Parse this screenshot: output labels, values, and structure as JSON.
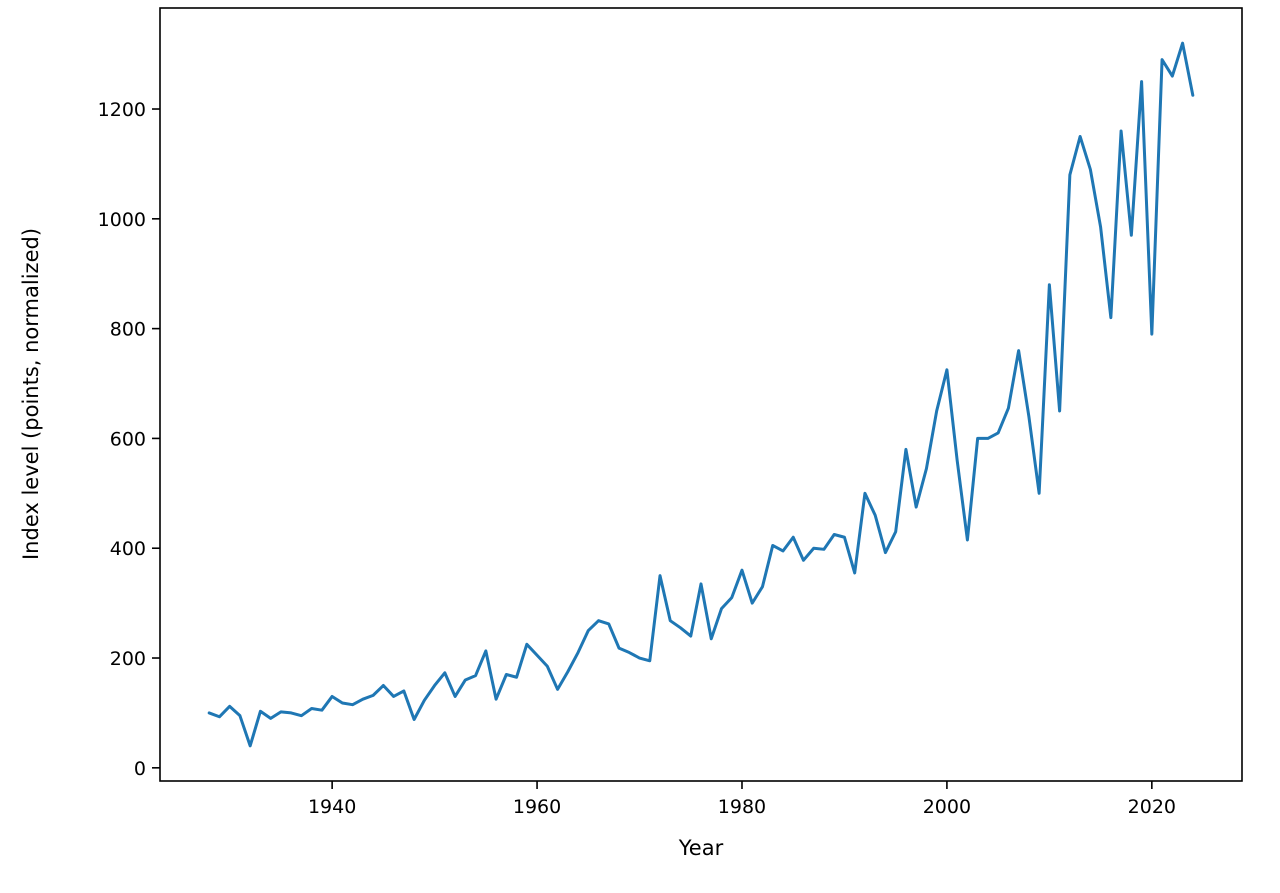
{
  "figure": {
    "background_color": "#ffffff",
    "spine_color": "#000000"
  },
  "chart_data": {
    "type": "line",
    "title": "",
    "xlabel": "Year",
    "ylabel": "Index level (points, normalized)",
    "line_color": "#1f77b4",
    "line_width": 3,
    "grid": false,
    "legend": "none",
    "xlim": [
      1923.2,
      2028.8
    ],
    "ylim": [
      -24,
      1384
    ],
    "xticks": [
      1940,
      1960,
      1980,
      2000,
      2020
    ],
    "yticks": [
      0,
      200,
      400,
      600,
      800,
      1000,
      1200
    ],
    "x": [
      1928,
      1929,
      1930,
      1931,
      1932,
      1933,
      1934,
      1935,
      1936,
      1937,
      1938,
      1939,
      1940,
      1941,
      1942,
      1943,
      1944,
      1945,
      1946,
      1947,
      1948,
      1949,
      1950,
      1951,
      1952,
      1953,
      1954,
      1955,
      1956,
      1957,
      1958,
      1959,
      1960,
      1961,
      1962,
      1963,
      1964,
      1965,
      1966,
      1967,
      1968,
      1969,
      1970,
      1971,
      1972,
      1973,
      1974,
      1975,
      1976,
      1977,
      1978,
      1979,
      1980,
      1981,
      1982,
      1983,
      1984,
      1985,
      1986,
      1987,
      1988,
      1989,
      1990,
      1991,
      1992,
      1993,
      1994,
      1995,
      1996,
      1997,
      1998,
      1999,
      2000,
      2001,
      2002,
      2003,
      2004,
      2005,
      2006,
      2007,
      2008,
      2009,
      2010,
      2011,
      2012,
      2013,
      2014,
      2015,
      2016,
      2017,
      2018,
      2019,
      2020,
      2021,
      2022,
      2023,
      2024
    ],
    "values": [
      100,
      93,
      112,
      95,
      40,
      103,
      90,
      102,
      100,
      95,
      108,
      105,
      130,
      118,
      115,
      125,
      132,
      150,
      130,
      140,
      88,
      123,
      150,
      173,
      130,
      160,
      168,
      213,
      125,
      170,
      165,
      225,
      205,
      185,
      143,
      175,
      210,
      250,
      268,
      262,
      218,
      210,
      200,
      195,
      350,
      268,
      255,
      240,
      335,
      235,
      290,
      310,
      360,
      300,
      330,
      405,
      395,
      420,
      378,
      400,
      398,
      425,
      420,
      355,
      500,
      460,
      392,
      430,
      580,
      475,
      545,
      650,
      725,
      560,
      415,
      600,
      600,
      610,
      655,
      760,
      640,
      500,
      880,
      650,
      1080,
      1150,
      1090,
      985,
      820,
      1160,
      970,
      1250,
      790,
      1290,
      1260,
      1320,
      1225
    ]
  }
}
